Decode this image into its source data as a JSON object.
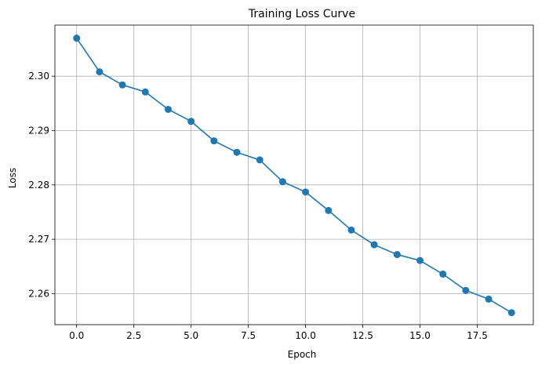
{
  "chart_data": {
    "type": "line",
    "title": "Training Loss Curve",
    "xlabel": "Epoch",
    "ylabel": "Loss",
    "xlim": [
      -0.95,
      19.95
    ],
    "ylim": [
      2.2543,
      2.3094
    ],
    "xticks": [
      0.0,
      2.5,
      5.0,
      7.5,
      10.0,
      12.5,
      15.0,
      17.5
    ],
    "xtick_labels": [
      "0.0",
      "2.5",
      "5.0",
      "7.5",
      "10.0",
      "12.5",
      "15.0",
      "17.5"
    ],
    "yticks": [
      2.26,
      2.27,
      2.28,
      2.29,
      2.3
    ],
    "ytick_labels": [
      "2.26",
      "2.27",
      "2.28",
      "2.29",
      "2.30"
    ],
    "grid": true,
    "series": [
      {
        "name": "Loss",
        "color": "#1f77b4",
        "marker": "circle",
        "x": [
          0,
          1,
          2,
          3,
          4,
          5,
          6,
          7,
          8,
          9,
          10,
          11,
          12,
          13,
          14,
          15,
          16,
          17,
          18,
          19
        ],
        "y": [
          2.307,
          2.3008,
          2.2984,
          2.2971,
          2.2939,
          2.2917,
          2.2881,
          2.286,
          2.2846,
          2.2806,
          2.2787,
          2.2753,
          2.2717,
          2.269,
          2.2672,
          2.2661,
          2.2636,
          2.2606,
          2.259,
          2.2565
        ]
      }
    ]
  }
}
